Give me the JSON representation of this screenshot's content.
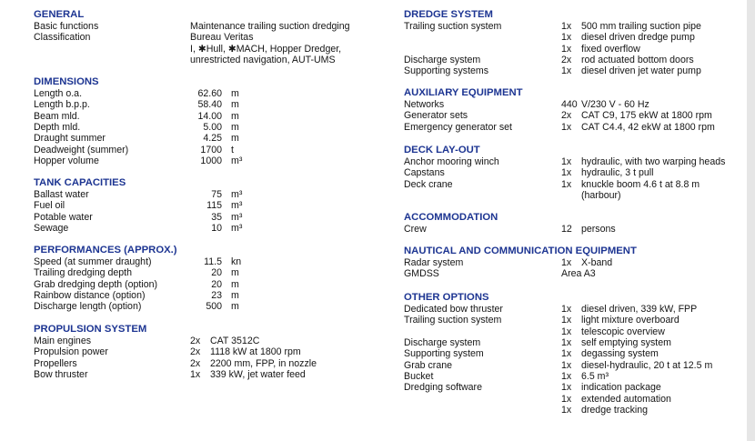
{
  "colors": {
    "heading": "#1d3592",
    "text": "#141414"
  },
  "left_sections": [
    {
      "title": "GENERAL",
      "rows": [
        {
          "label": "Basic functions",
          "value": "Maintenance trailing suction dredging"
        },
        {
          "label": "Classification",
          "value": "Bureau Veritas"
        },
        {
          "label": "",
          "value": "I, ✱Hull, ✱MACH, Hopper Dredger,"
        },
        {
          "label": "",
          "value": "unrestricted navigation, AUT-UMS"
        }
      ]
    },
    {
      "title": "DIMENSIONS",
      "rows": [
        {
          "label": "Length o.a.",
          "num": "62.60",
          "unit": "m"
        },
        {
          "label": "Length b.p.p.",
          "num": "58.40",
          "unit": "m"
        },
        {
          "label": "Beam mld.",
          "num": "14.00",
          "unit": "m"
        },
        {
          "label": "Depth mld.",
          "num": "5.00",
          "unit": "m"
        },
        {
          "label": "Draught summer",
          "num": "4.25",
          "unit": "m"
        },
        {
          "label": "Deadweight (summer)",
          "num": "1700",
          "unit": "t"
        },
        {
          "label": "Hopper volume",
          "num": "1000",
          "unit": "m³"
        }
      ]
    },
    {
      "title": "TANK CAPACITIES",
      "rows": [
        {
          "label": "Ballast water",
          "num": "75",
          "unit": "m³"
        },
        {
          "label": "Fuel oil",
          "num": "115",
          "unit": "m³"
        },
        {
          "label": "Potable water",
          "num": "35",
          "unit": "m³"
        },
        {
          "label": "Sewage",
          "num": "10",
          "unit": "m³"
        }
      ]
    },
    {
      "title": "PERFORMANCES (APPROX.)",
      "rows": [
        {
          "label": "Speed (at summer draught)",
          "num": "11.5",
          "unit": "kn"
        },
        {
          "label": "Trailing dredging depth",
          "num": "20",
          "unit": "m"
        },
        {
          "label": "Grab dredging depth (option)",
          "num": "20",
          "unit": "m"
        },
        {
          "label": "Rainbow distance (option)",
          "num": "23",
          "unit": "m"
        },
        {
          "label": "Discharge length (option)",
          "num": "500",
          "unit": "m"
        }
      ]
    },
    {
      "title": "PROPULSION SYSTEM",
      "rows": [
        {
          "label": "Main engines",
          "qty": "2x",
          "desc": "CAT 3512C"
        },
        {
          "label": "Propulsion power",
          "qty": "2x",
          "desc": "1118 kW at 1800 rpm"
        },
        {
          "label": "Propellers",
          "qty": "2x",
          "desc": "2200 mm, FPP, in nozzle"
        },
        {
          "label": "Bow thruster",
          "qty": "1x",
          "desc": "339 kW, jet water feed"
        }
      ]
    }
  ],
  "right_sections": [
    {
      "title": "DREDGE SYSTEM",
      "rows": [
        {
          "label": "Trailing suction system",
          "qty": "1x",
          "desc": "500 mm trailing suction pipe"
        },
        {
          "label": "",
          "qty": "1x",
          "desc": "diesel driven dredge pump"
        },
        {
          "label": "",
          "qty": "1x",
          "desc": "fixed overflow"
        },
        {
          "label": "Discharge system",
          "qty": "2x",
          "desc": "rod actuated bottom doors"
        },
        {
          "label": "Supporting systems",
          "qty": "1x",
          "desc": "diesel driven jet water pump"
        }
      ]
    },
    {
      "title": "AUXILIARY EQUIPMENT",
      "rows": [
        {
          "label": "Networks",
          "qty": "440",
          "desc": "V/230 V - 60 Hz"
        },
        {
          "label": "Generator sets",
          "qty": "2x",
          "desc": "CAT C9, 175 ekW at 1800 rpm"
        },
        {
          "label": "Emergency generator set",
          "qty": "1x",
          "desc": "CAT C4.4, 42 ekW at 1800 rpm"
        }
      ]
    },
    {
      "title": "DECK LAY-OUT",
      "rows": [
        {
          "label": "Anchor mooring winch",
          "qty": "1x",
          "desc": "hydraulic, with two warping heads"
        },
        {
          "label": "Capstans",
          "qty": "1x",
          "desc": "hydraulic, 3 t pull"
        },
        {
          "label": "Deck crane",
          "qty": "1x",
          "desc": "knuckle boom 4.6 t at 8.8 m"
        },
        {
          "label": "",
          "qty": "",
          "desc": "(harbour)"
        }
      ]
    },
    {
      "title": "ACCOMMODATION",
      "rows": [
        {
          "label": "Crew",
          "qty": "12",
          "desc": "persons"
        }
      ]
    },
    {
      "title": "NAUTICAL AND COMMUNICATION EQUIPMENT",
      "rows": [
        {
          "label": "Radar system",
          "qty": "1x",
          "desc": "X-band"
        },
        {
          "label": "GMDSS",
          "value": "Area A3"
        }
      ]
    },
    {
      "title": "OTHER OPTIONS",
      "rows": [
        {
          "label": "Dedicated bow thruster",
          "qty": "1x",
          "desc": "diesel driven, 339 kW, FPP"
        },
        {
          "label": "Trailing suction system",
          "qty": "1x",
          "desc": "light mixture overboard"
        },
        {
          "label": "",
          "qty": "1x",
          "desc": "telescopic overview"
        },
        {
          "label": "Discharge system",
          "qty": "1x",
          "desc": "self emptying system"
        },
        {
          "label": "Supporting system",
          "qty": "1x",
          "desc": "degassing system"
        },
        {
          "label": "Grab crane",
          "qty": "1x",
          "desc": "diesel-hydraulic, 20 t at 12.5 m"
        },
        {
          "label": "Bucket",
          "qty": "1x",
          "desc": "6.5 m³"
        },
        {
          "label": "Dredging software",
          "qty": "1x",
          "desc": "indication package"
        },
        {
          "label": "",
          "qty": "1x",
          "desc": "extended automation"
        },
        {
          "label": "",
          "qty": "1x",
          "desc": "dredge tracking"
        }
      ]
    }
  ]
}
